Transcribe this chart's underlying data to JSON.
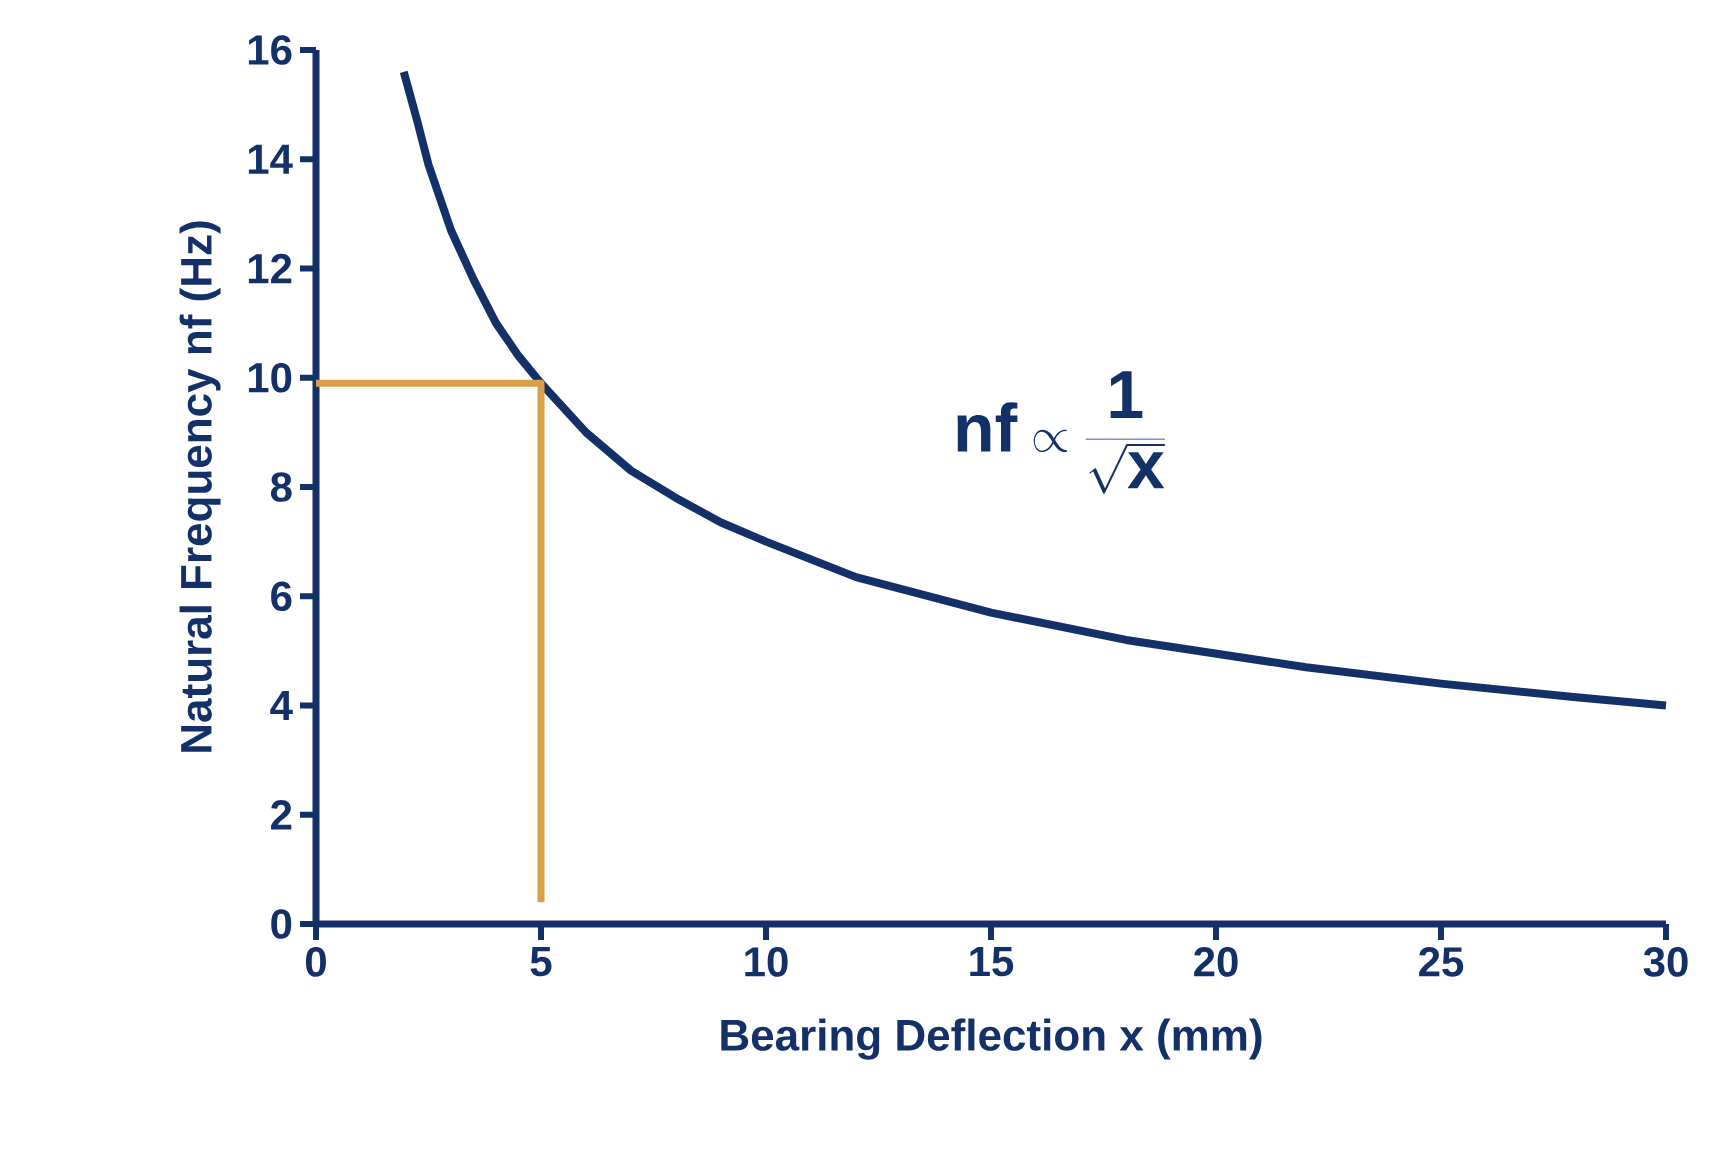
{
  "chart_data": {
    "type": "line",
    "xlabel": "Bearing Deflection x (mm)",
    "ylabel": "Natural Frequency nf (Hz)",
    "xlim": [
      0,
      30
    ],
    "ylim": [
      0,
      16
    ],
    "xticks": [
      0,
      5,
      10,
      15,
      20,
      25,
      30
    ],
    "yticks": [
      0,
      2,
      4,
      6,
      8,
      10,
      12,
      14,
      16
    ],
    "marker": "none",
    "line_style": "solid",
    "annotations": [
      "\\mathbf{nf} \\propto \\frac{\\mathbf{1}}{\\sqrt{\\mathbf{x}}}"
    ],
    "series": [
      {
        "color": "#143068",
        "x": [
          1.95,
          2.25,
          2.5,
          3,
          3.5,
          4,
          4.5,
          5,
          6,
          7,
          8,
          9,
          10,
          12,
          15,
          18,
          20,
          22,
          25,
          28,
          30
        ],
        "values": [
          15.6,
          14.7,
          13.9,
          12.7,
          11.8,
          11.0,
          10.4,
          9.9,
          9.0,
          8.3,
          7.8,
          7.35,
          7.0,
          6.35,
          5.7,
          5.2,
          4.95,
          4.7,
          4.4,
          4.15,
          4.0
        ]
      },
      {
        "color": "#d9a04a",
        "x": [
          0,
          5,
          5
        ],
        "values": [
          9.9,
          9.9,
          0.4
        ]
      }
    ]
  }
}
